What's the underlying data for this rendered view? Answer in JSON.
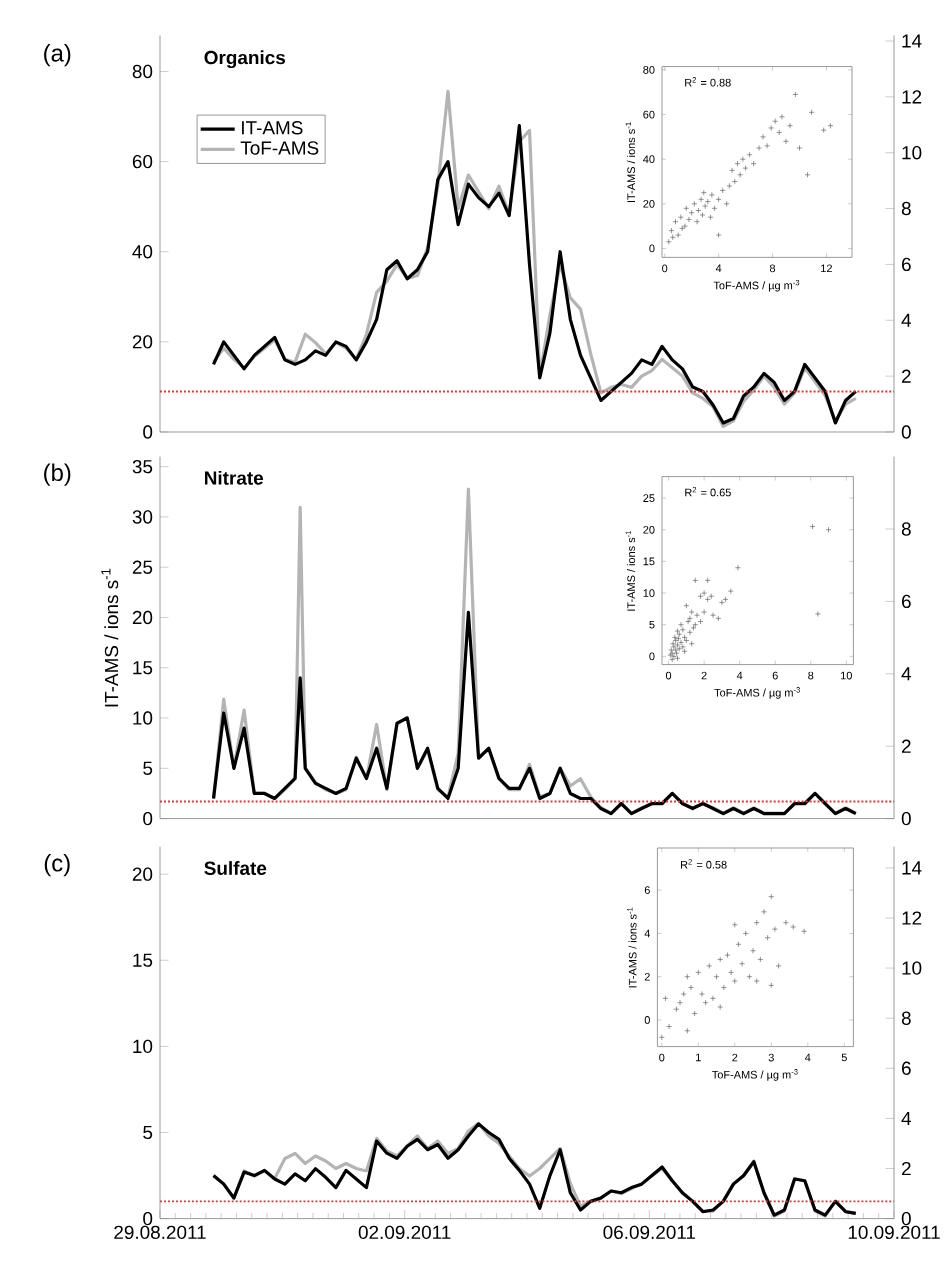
{
  "chart_data": [
    {
      "type": "line",
      "title": "Organics",
      "annotations": [
        "(a)"
      ],
      "xlim": [
        "2011-08-29",
        "2011-09-10"
      ],
      "tick_labels": "y",
      "ylim": [
        0,
        88
      ],
      "yticks": [
        0,
        20,
        40,
        60,
        80
      ],
      "y2lim": [
        0,
        14.2
      ],
      "y2ticks": [
        0,
        2,
        4,
        6,
        8,
        10,
        12,
        14
      ],
      "legend": "top left",
      "ref_lines": [
        {
          "axis": "y",
          "value": 9,
          "color": "#e8322c",
          "line_style": "dotted"
        }
      ],
      "x": [
        "2011-08-29T21:00",
        "2011-08-30T01:00",
        "2011-08-30T05:00",
        "2011-08-30T09:00",
        "2011-08-30T13:00",
        "2011-08-30T17:00",
        "2011-08-30T21:00",
        "2011-08-31T01:00",
        "2011-08-31T05:00",
        "2011-08-31T09:00",
        "2011-08-31T13:00",
        "2011-08-31T17:00",
        "2011-08-31T21:00",
        "2011-09-01T01:00",
        "2011-09-01T05:00",
        "2011-09-01T09:00",
        "2011-09-01T13:00",
        "2011-09-01T17:00",
        "2011-09-01T21:00",
        "2011-09-02T01:00",
        "2011-09-02T05:00",
        "2011-09-02T09:00",
        "2011-09-02T13:00",
        "2011-09-02T17:00",
        "2011-09-02T21:00",
        "2011-09-03T01:00",
        "2011-09-03T05:00",
        "2011-09-03T09:00",
        "2011-09-03T13:00",
        "2011-09-03T17:00",
        "2011-09-03T21:00",
        "2011-09-04T01:00",
        "2011-09-04T05:00",
        "2011-09-04T09:00",
        "2011-09-04T13:00",
        "2011-09-04T17:00",
        "2011-09-04T21:00",
        "2011-09-05T01:00",
        "2011-09-05T05:00",
        "2011-09-05T09:00",
        "2011-09-05T13:00",
        "2011-09-05T17:00",
        "2011-09-05T21:00",
        "2011-09-06T01:00",
        "2011-09-06T05:00",
        "2011-09-06T09:00",
        "2011-09-06T13:00",
        "2011-09-06T17:00",
        "2011-09-06T21:00",
        "2011-09-07T01:00",
        "2011-09-07T05:00",
        "2011-09-07T09:00",
        "2011-09-07T13:00",
        "2011-09-07T17:00",
        "2011-09-07T21:00",
        "2011-09-08T01:00",
        "2011-09-08T05:00",
        "2011-09-08T09:00",
        "2011-09-08T13:00",
        "2011-09-08T17:00",
        "2011-09-08T21:00",
        "2011-09-09T01:00",
        "2011-09-09T05:00",
        "2011-09-09T09:00"
      ],
      "series": [
        {
          "name": "IT-AMS",
          "color": "#000000",
          "values": [
            15,
            20,
            17,
            14,
            17,
            19,
            21,
            16,
            15,
            16,
            18,
            17,
            20,
            19,
            16,
            20,
            25,
            36,
            38,
            34,
            36,
            40,
            56,
            60,
            46,
            55,
            52,
            50,
            53,
            48,
            68,
            37,
            12,
            22,
            40,
            25,
            17,
            12,
            7,
            9,
            11,
            13,
            16,
            15,
            19,
            16,
            14,
            10,
            9,
            6,
            2,
            3,
            8,
            10,
            13,
            11,
            7,
            9,
            15,
            12,
            9,
            2,
            7,
            9
          ]
        },
        {
          "name": "ToF-AMS",
          "color": "#b4b4b4",
          "axis": "y2",
          "values": [
            2.5,
            3.0,
            2.6,
            2.3,
            2.7,
            3.0,
            3.3,
            2.6,
            2.5,
            3.5,
            3.2,
            2.8,
            3.2,
            3.0,
            2.6,
            3.5,
            5.0,
            5.4,
            6.0,
            5.5,
            5.6,
            6.6,
            8.8,
            12.2,
            8.0,
            9.2,
            8.6,
            8.0,
            8.8,
            7.8,
            10.4,
            10.8,
            2.0,
            4.2,
            6.0,
            4.8,
            4.4,
            2.8,
            1.4,
            1.6,
            1.7,
            1.6,
            2.0,
            2.2,
            2.6,
            2.3,
            2.0,
            1.4,
            1.2,
            0.9,
            0.2,
            0.4,
            1.1,
            1.5,
            2.0,
            1.6,
            1.0,
            1.4,
            2.3,
            1.8,
            1.3,
            0.4,
            1.0,
            1.2
          ]
        }
      ]
    },
    {
      "type": "scatter",
      "annotations": [
        "R$^{2}$ = 0.88"
      ],
      "xlabel": "ToF-AMS / µg m$^{-3}$",
      "ylabel": "IT-AMS / ions s$^{-1}$",
      "xlim": [
        -0.2,
        13.9
      ],
      "xticks": [
        0,
        4,
        8,
        12
      ],
      "ylim": [
        -4,
        81.5
      ],
      "yticks": [
        0,
        20,
        40,
        60,
        80
      ],
      "marker": "cross",
      "series": [
        {
          "color": "#505050",
          "x": [
            0.3,
            0.5,
            0.8,
            1,
            1.2,
            1.5,
            1.6,
            1.8,
            2,
            2.2,
            2.4,
            2.5,
            2.7,
            2.8,
            3,
            3.2,
            3.4,
            3.5,
            3.7,
            4,
            4,
            4.3,
            4.6,
            5,
            5.2,
            5.4,
            5.6,
            5.8,
            6,
            6.3,
            6.6,
            7,
            7.3,
            7.6,
            7.9,
            8.2,
            8.5,
            8.7,
            9,
            9.3,
            9.7,
            10,
            10.9,
            10.6,
            11.8,
            12.3,
            1.3,
            2.9,
            0.6,
            4.8
          ],
          "values": [
            3,
            8,
            12,
            6,
            14,
            10,
            18,
            13,
            16,
            20,
            12,
            17,
            22,
            15,
            19,
            21,
            14,
            24,
            18,
            6,
            22,
            26,
            20,
            35,
            30,
            38,
            33,
            40,
            36,
            42,
            38,
            45,
            50,
            46,
            54,
            57,
            52,
            59,
            48,
            55,
            69,
            45,
            61,
            33,
            53,
            55,
            9,
            25,
            5,
            28
          ]
        }
      ]
    },
    {
      "type": "line",
      "title": "Nitrate",
      "annotations": [
        "(b)"
      ],
      "ylabel": "IT-AMS / ions s$^{-1}$",
      "xlim": [
        "2011-08-29",
        "2011-09-10"
      ],
      "tick_labels": "y",
      "ylim": [
        0,
        36
      ],
      "yticks": [
        0,
        5,
        10,
        15,
        20,
        25,
        30,
        35
      ],
      "y2lim": [
        0,
        10
      ],
      "y2ticks": [
        0,
        2,
        4,
        6,
        8
      ],
      "ref_lines": [
        {
          "axis": "y",
          "value": 1.7,
          "color": "#e8322c",
          "line_style": "dotted"
        }
      ],
      "x": [
        "2011-08-29T21:00",
        "2011-08-30T01:00",
        "2011-08-30T05:00",
        "2011-08-30T09:00",
        "2011-08-30T13:00",
        "2011-08-30T17:00",
        "2011-08-30T21:00",
        "2011-08-31T01:00",
        "2011-08-31T05:00",
        "2011-08-31T07:00",
        "2011-08-31T09:00",
        "2011-08-31T13:00",
        "2011-08-31T17:00",
        "2011-08-31T21:00",
        "2011-09-01T01:00",
        "2011-09-01T05:00",
        "2011-09-01T09:00",
        "2011-09-01T13:00",
        "2011-09-01T17:00",
        "2011-09-01T21:00",
        "2011-09-02T01:00",
        "2011-09-02T05:00",
        "2011-09-02T09:00",
        "2011-09-02T13:00",
        "2011-09-02T17:00",
        "2011-09-02T21:00",
        "2011-09-03T01:00",
        "2011-09-03T05:00",
        "2011-09-03T09:00",
        "2011-09-03T13:00",
        "2011-09-03T17:00",
        "2011-09-03T21:00",
        "2011-09-04T01:00",
        "2011-09-04T05:00",
        "2011-09-04T09:00",
        "2011-09-04T13:00",
        "2011-09-04T17:00",
        "2011-09-04T21:00",
        "2011-09-05T01:00",
        "2011-09-05T05:00",
        "2011-09-05T09:00",
        "2011-09-05T13:00",
        "2011-09-05T17:00",
        "2011-09-05T21:00",
        "2011-09-06T01:00",
        "2011-09-06T05:00",
        "2011-09-06T09:00",
        "2011-09-06T13:00",
        "2011-09-06T17:00",
        "2011-09-06T21:00",
        "2011-09-07T01:00",
        "2011-09-07T05:00",
        "2011-09-07T09:00",
        "2011-09-07T13:00",
        "2011-09-07T17:00",
        "2011-09-07T21:00",
        "2011-09-08T01:00",
        "2011-09-08T05:00",
        "2011-09-08T09:00",
        "2011-09-08T13:00",
        "2011-09-08T17:00",
        "2011-09-08T21:00",
        "2011-09-09T01:00",
        "2011-09-09T05:00",
        "2011-09-09T09:00"
      ],
      "series": [
        {
          "color": "#000000",
          "values": [
            2,
            10.5,
            5,
            9,
            2.5,
            2.5,
            2,
            3,
            4,
            14,
            5,
            3.5,
            3,
            2.5,
            3,
            6,
            4,
            7,
            3,
            9.5,
            10,
            5,
            7,
            3,
            2,
            5,
            20.5,
            6,
            7,
            4,
            3,
            3,
            5,
            2,
            2.5,
            5,
            2.5,
            2,
            2,
            1,
            0.5,
            1.5,
            0.5,
            1,
            1.5,
            1.5,
            2.5,
            1.5,
            1,
            1.5,
            1,
            0.5,
            1,
            0.5,
            1,
            0.5,
            0.5,
            0.5,
            1.5,
            1.5,
            2.5,
            1.5,
            0.5,
            1,
            0.5
          ]
        },
        {
          "color": "#b4b4b4",
          "axis": "y2",
          "values": [
            0.55,
            3.3,
            1.4,
            3.0,
            0.7,
            0.7,
            0.55,
            0.8,
            1.1,
            8.6,
            1.4,
            1.0,
            0.8,
            0.7,
            0.8,
            1.7,
            1.1,
            2.6,
            0.8,
            2.6,
            2.8,
            1.4,
            1.9,
            0.8,
            0.6,
            1.8,
            9.1,
            1.7,
            1.9,
            1.1,
            0.8,
            0.8,
            1.5,
            0.6,
            0.7,
            1.4,
            0.9,
            1.1,
            0.6,
            0.3,
            0.15,
            0.4,
            0.15,
            0.3,
            0.4,
            0.4,
            0.7,
            0.4,
            0.3,
            0.4,
            0.3,
            0.15,
            0.3,
            0.15,
            0.3,
            0.15,
            0.15,
            0.15,
            0.4,
            0.4,
            0.7,
            0.4,
            0.15,
            0.3,
            0.15
          ]
        }
      ]
    },
    {
      "type": "scatter",
      "annotations": [
        "R$^{2}$ = 0.65"
      ],
      "xlabel": "ToF-AMS / µg m$^{-3}$",
      "ylabel": "IT-AMS / ions s$^{-1}$",
      "xlim": [
        -0.37,
        10.4
      ],
      "xticks": [
        0,
        2,
        4,
        6,
        8,
        10
      ],
      "ylim": [
        -1.3,
        28.4
      ],
      "yticks": [
        0,
        5,
        10,
        15,
        20,
        25
      ],
      "marker": "cross",
      "series": [
        {
          "color": "#505050",
          "x": [
            0.1,
            0.15,
            0.2,
            0.25,
            0.3,
            0.3,
            0.35,
            0.4,
            0.4,
            0.45,
            0.5,
            0.5,
            0.55,
            0.6,
            0.6,
            0.7,
            0.7,
            0.8,
            0.8,
            0.9,
            1.0,
            1.0,
            1.1,
            1.2,
            1.2,
            1.3,
            1.4,
            1.5,
            1.5,
            1.6,
            1.8,
            1.8,
            2.0,
            2.0,
            2.2,
            2.2,
            2.4,
            2.5,
            2.8,
            3.0,
            3.2,
            3.5,
            3.9,
            8.1,
            9.0,
            8.4,
            0.2,
            0.5,
            0.9,
            1.3
          ],
          "values": [
            0.2,
            1.0,
            0.5,
            2.0,
            0.0,
            1.5,
            3.0,
            1.0,
            2.5,
            0.5,
            1.8,
            4.0,
            2.8,
            1.2,
            3.5,
            2.2,
            5.0,
            1.5,
            4.2,
            3.0,
            2.5,
            8.0,
            5.5,
            6.0,
            3.8,
            7.0,
            4.5,
            5.0,
            12.0,
            6.5,
            9.5,
            5.5,
            10.0,
            7.0,
            12.0,
            9.0,
            9.5,
            6.5,
            6.0,
            8.5,
            9.0,
            10.3,
            14.0,
            20.5,
            20.0,
            6.7,
            -0.5,
            -0.3,
            0.8,
            2.0
          ]
        }
      ]
    },
    {
      "type": "line",
      "title": "Sulfate",
      "annotations": [
        "(c)"
      ],
      "xlim": [
        "2011-08-29",
        "2011-09-10"
      ],
      "xticks": [
        {
          "value": "2011-08-29",
          "label": "29.08.2011"
        },
        {
          "value": "2011-09-02",
          "label": "02.09.2011"
        },
        {
          "value": "2011-09-06",
          "label": "06.09.2011"
        },
        {
          "value": "2011-09-10",
          "label": "10.09.2011"
        }
      ],
      "ylim": [
        0,
        21.6
      ],
      "yticks": [
        0,
        5,
        10,
        15,
        20
      ],
      "y2lim": [
        0,
        14.85
      ],
      "y2ticks": [
        0,
        2,
        4,
        6,
        8,
        10,
        12,
        14
      ],
      "ref_lines": [
        {
          "axis": "y",
          "value": 1.0,
          "color": "#e8322c",
          "line_style": "dotted"
        }
      ],
      "x": [
        "2011-08-29T21:00",
        "2011-08-30T01:00",
        "2011-08-30T05:00",
        "2011-08-30T09:00",
        "2011-08-30T13:00",
        "2011-08-30T17:00",
        "2011-08-30T21:00",
        "2011-08-31T01:00",
        "2011-08-31T05:00",
        "2011-08-31T09:00",
        "2011-08-31T13:00",
        "2011-08-31T17:00",
        "2011-08-31T21:00",
        "2011-09-01T01:00",
        "2011-09-01T05:00",
        "2011-09-01T09:00",
        "2011-09-01T13:00",
        "2011-09-01T17:00",
        "2011-09-01T21:00",
        "2011-09-02T01:00",
        "2011-09-02T05:00",
        "2011-09-02T09:00",
        "2011-09-02T13:00",
        "2011-09-02T17:00",
        "2011-09-02T21:00",
        "2011-09-03T01:00",
        "2011-09-03T05:00",
        "2011-09-03T09:00",
        "2011-09-03T13:00",
        "2011-09-03T17:00",
        "2011-09-03T21:00",
        "2011-09-04T01:00",
        "2011-09-04T05:00",
        "2011-09-04T09:00",
        "2011-09-04T13:00",
        "2011-09-04T17:00",
        "2011-09-04T21:00",
        "2011-09-05T01:00",
        "2011-09-05T05:00",
        "2011-09-05T09:00",
        "2011-09-05T13:00",
        "2011-09-05T17:00",
        "2011-09-05T21:00",
        "2011-09-06T01:00",
        "2011-09-06T05:00",
        "2011-09-06T09:00",
        "2011-09-06T13:00",
        "2011-09-06T17:00",
        "2011-09-06T21:00",
        "2011-09-07T01:00",
        "2011-09-07T05:00",
        "2011-09-07T09:00",
        "2011-09-07T13:00",
        "2011-09-07T17:00",
        "2011-09-07T21:00",
        "2011-09-08T01:00",
        "2011-09-08T05:00",
        "2011-09-08T09:00",
        "2011-09-08T13:00",
        "2011-09-08T17:00",
        "2011-09-08T21:00",
        "2011-09-09T01:00",
        "2011-09-09T05:00",
        "2011-09-09T09:00"
      ],
      "series": [
        {
          "color": "#000000",
          "values": [
            2.5,
            2.0,
            1.2,
            2.7,
            2.5,
            2.8,
            2.3,
            2.0,
            2.6,
            2.2,
            2.9,
            2.4,
            1.8,
            2.8,
            2.3,
            1.8,
            4.5,
            3.8,
            3.5,
            4.2,
            4.6,
            4.0,
            4.3,
            3.5,
            4.0,
            4.8,
            5.5,
            5.0,
            4.6,
            3.5,
            2.8,
            2.0,
            0.6,
            2.5,
            4.0,
            1.5,
            0.5,
            1.0,
            1.2,
            1.6,
            1.5,
            1.8,
            2.0,
            2.5,
            3.0,
            2.2,
            1.5,
            1.0,
            0.4,
            0.5,
            1.0,
            2.0,
            2.5,
            3.3,
            1.5,
            0.2,
            0.5,
            2.3,
            2.2,
            0.5,
            0.2,
            1.0,
            0.4,
            0.3
          ]
        },
        {
          "color": "#b4b4b4",
          "axis": "y2",
          "values": [
            1.7,
            1.4,
            0.8,
            1.9,
            1.7,
            1.9,
            1.6,
            2.4,
            2.6,
            2.2,
            2.5,
            2.3,
            2.0,
            2.2,
            2.0,
            1.9,
            3.2,
            2.7,
            2.5,
            2.9,
            3.3,
            2.8,
            3.1,
            2.6,
            2.8,
            3.5,
            3.8,
            3.3,
            3.0,
            2.5,
            2.0,
            1.7,
            2.0,
            2.4,
            2.8,
            1.4,
            0.5,
            0.7,
            0.8,
            1.1,
            1.0,
            1.2,
            1.4,
            1.7,
            2.0,
            1.5,
            1.0,
            0.7,
            0.3,
            0.3,
            0.7,
            1.4,
            1.7,
            2.3,
            1.0,
            0.1,
            0.3,
            1.6,
            1.5,
            0.3,
            0.1,
            0.7,
            0.3,
            0.2
          ]
        }
      ]
    },
    {
      "type": "scatter",
      "annotations": [
        "R$^{2}$ = 0.58"
      ],
      "xlabel": "ToF-AMS / µg m$^{-3}$",
      "ylabel": "IT-AMS / ions s$^{-1}$",
      "xlim": [
        -0.12,
        5.25
      ],
      "xticks": [
        0,
        1,
        2,
        3,
        4,
        5
      ],
      "ylim": [
        -1.23,
        7.95
      ],
      "yticks": [
        0,
        2,
        4,
        6
      ],
      "marker": "cross",
      "series": [
        {
          "color": "#505050",
          "x": [
            0,
            0.1,
            0.2,
            0.4,
            0.6,
            0.7,
            0.8,
            0.9,
            1,
            1.1,
            1.2,
            1.3,
            1.5,
            1.6,
            1.7,
            1.8,
            1.9,
            2,
            2.1,
            2.2,
            2.3,
            2.4,
            2.5,
            2.6,
            2.7,
            2.8,
            2.9,
            3,
            3.1,
            3.2,
            3.4,
            3.6,
            3.9,
            0.5,
            1.4,
            2.0,
            2.6,
            3.0,
            0.7,
            1.6
          ],
          "values": [
            -0.8,
            1,
            -0.3,
            0.5,
            1.2,
            2,
            1.5,
            0.3,
            2.2,
            1.2,
            0.8,
            2.5,
            2,
            2.8,
            1.5,
            3,
            2.2,
            1.8,
            3.5,
            2.6,
            4,
            2,
            3.2,
            4.5,
            2.8,
            5,
            3.8,
            5.7,
            4.2,
            2.5,
            4.5,
            4.3,
            4.1,
            0.8,
            1,
            4.4,
            1.8,
            1.6,
            -0.5,
            0.6
          ]
        }
      ]
    }
  ]
}
